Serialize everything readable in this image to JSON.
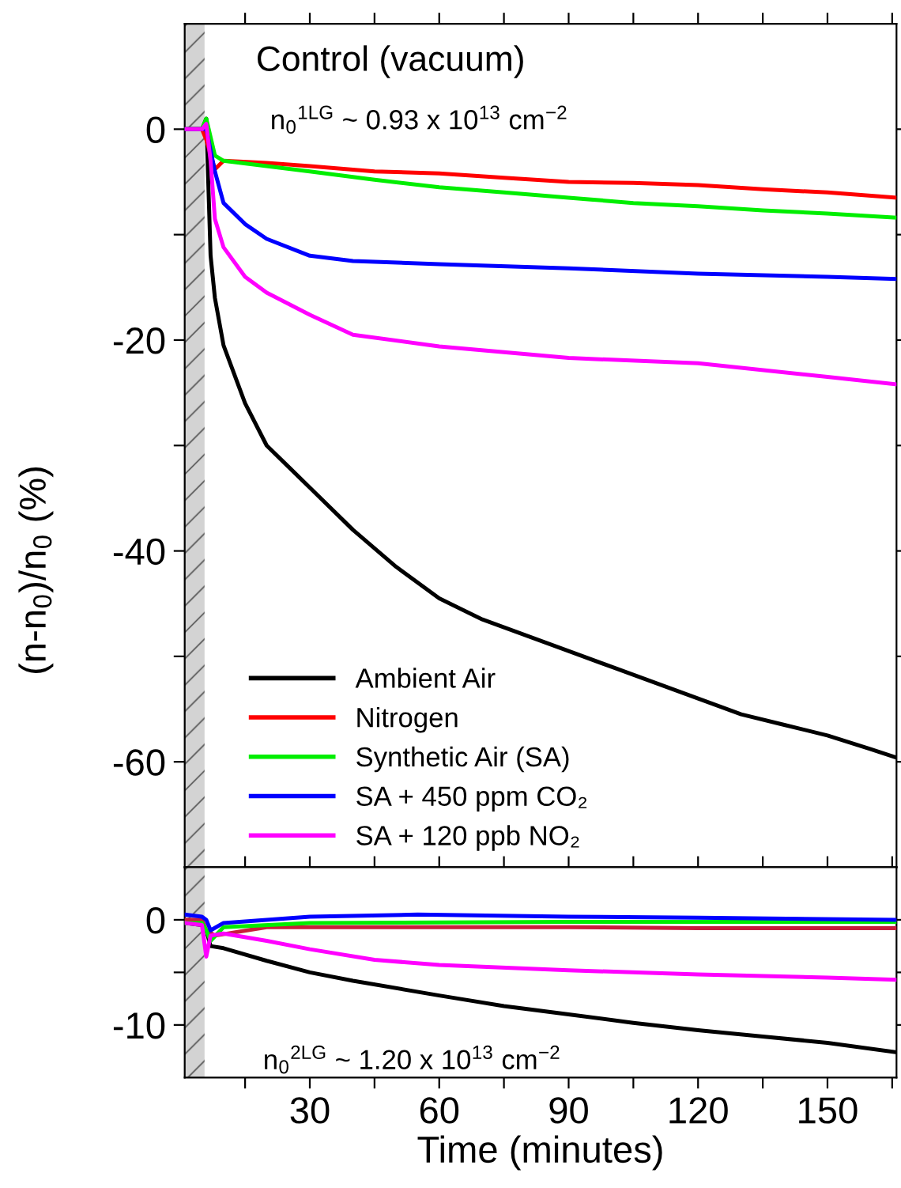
{
  "chart_data": [
    {
      "type": "line",
      "ylabel": "(n-n$_{0}$)/n$_{0}$ (%)",
      "xlim": [
        1,
        166
      ],
      "ylim": [
        -70,
        10
      ],
      "xticks": [
        {
          "value": 15,
          "label": null
        },
        {
          "value": 30,
          "label": null
        },
        {
          "value": 45,
          "label": null
        },
        {
          "value": 60,
          "label": null
        },
        {
          "value": 75,
          "label": null
        },
        {
          "value": 90,
          "label": null
        },
        {
          "value": 105,
          "label": null
        },
        {
          "value": 120,
          "label": null
        },
        {
          "value": 135,
          "label": null
        },
        {
          "value": 150,
          "label": null
        },
        {
          "value": 165,
          "label": null
        }
      ],
      "yticks": [
        0,
        {
          "value": -10,
          "label": null
        },
        -20,
        {
          "value": -30,
          "label": null
        },
        -40,
        {
          "value": -50,
          "label": null
        },
        -60
      ],
      "tick_labels": "y",
      "legend": "bottom left",
      "grid": false,
      "annotations": [
        "Control (vacuum)",
        "n$_{0}$$^{1LG}$ ~ 0.93 x 10$^{13}$ cm$^{−2}$"
      ],
      "bands": [
        {
          "axis": "x",
          "from": 1,
          "to": 5.6,
          "color": "#d3d3d3"
        }
      ],
      "series": [
        {
          "name": "Ambient Air",
          "color": "#000000",
          "x": [
            1,
            5,
            6,
            7,
            8,
            10,
            15,
            20,
            25,
            30,
            40,
            50,
            60,
            70,
            80,
            90,
            100,
            110,
            120,
            130,
            140,
            150,
            160,
            166
          ],
          "values": [
            0,
            0,
            1,
            -12,
            -16,
            -20.5,
            -26,
            -30,
            -32,
            -34,
            -38,
            -41.5,
            -44.5,
            -46.5,
            -48,
            -49.5,
            -51,
            -52.5,
            -54,
            -55.5,
            -56.5,
            -57.5,
            -58.8,
            -59.6
          ]
        },
        {
          "name": "Nitrogen",
          "color": "#ff0000",
          "x": [
            1,
            5,
            6,
            8,
            10,
            20,
            30,
            45,
            60,
            75,
            90,
            105,
            120,
            135,
            150,
            166
          ],
          "values": [
            0,
            0,
            -1,
            -3.8,
            -3,
            -3.2,
            -3.5,
            -4,
            -4.2,
            -4.6,
            -5,
            -5.1,
            -5.3,
            -5.7,
            -6,
            -6.5
          ]
        },
        {
          "name": "Synthetic Air (SA)",
          "color": "#00ee00",
          "x": [
            1,
            5,
            6,
            8,
            10,
            20,
            30,
            45,
            60,
            75,
            90,
            105,
            120,
            135,
            150,
            166
          ],
          "values": [
            0,
            0,
            1,
            -2.5,
            -3,
            -3.5,
            -4,
            -4.8,
            -5.5,
            -6,
            -6.5,
            -7,
            -7.3,
            -7.7,
            -8,
            -8.4
          ]
        },
        {
          "name": "SA + 450 ppm CO₂",
          "color": "#0000ff",
          "x": [
            1,
            5,
            6,
            8,
            10,
            15,
            20,
            30,
            40,
            60,
            90,
            120,
            150,
            166
          ],
          "values": [
            0,
            0,
            0,
            -4,
            -7,
            -9,
            -10.4,
            -12,
            -12.5,
            -12.8,
            -13.2,
            -13.7,
            -14,
            -14.2
          ]
        },
        {
          "name": "SA + 120 ppb NO₂",
          "color": "#ff00ff",
          "x": [
            1,
            5,
            6,
            7,
            8,
            10,
            15,
            20,
            30,
            40,
            60,
            90,
            120,
            150,
            166
          ],
          "values": [
            0,
            0,
            0.5,
            -3,
            -8.5,
            -11.2,
            -14,
            -15.5,
            -17.6,
            -19.5,
            -20.6,
            -21.7,
            -22.2,
            -23.5,
            -24.2
          ]
        }
      ]
    },
    {
      "type": "line",
      "xlabel": "Time (minutes)",
      "xlim": [
        1,
        166
      ],
      "ylim": [
        -15,
        5
      ],
      "xticks": [
        {
          "value": 15,
          "label": null
        },
        30,
        {
          "value": 45,
          "label": null
        },
        60,
        {
          "value": 75,
          "label": null
        },
        90,
        {
          "value": 105,
          "label": null
        },
        120,
        {
          "value": 135,
          "label": null
        },
        150,
        {
          "value": 165,
          "label": null
        }
      ],
      "yticks": [
        0,
        {
          "value": -5,
          "label": null
        },
        -10
      ],
      "grid": false,
      "annotations": [
        "n$_{0}$$^{2LG}$ ~ 1.20 x 10$^{13}$ cm$^{−2}$"
      ],
      "bands": [
        {
          "axis": "x",
          "from": 1,
          "to": 5.6,
          "color": "#d3d3d3"
        }
      ],
      "series": [
        {
          "color": "#000000",
          "x": [
            1,
            5,
            6,
            7,
            10,
            20,
            30,
            40,
            60,
            75,
            90,
            105,
            120,
            135,
            150,
            166
          ],
          "values": [
            -0.3,
            -0.5,
            -1,
            -2.5,
            -2.7,
            -3.9,
            -5,
            -5.8,
            -7.2,
            -8.2,
            -9,
            -9.8,
            -10.5,
            -11.1,
            -11.7,
            -12.6
          ]
        },
        {
          "color": "#c81e3c",
          "x": [
            1,
            5,
            6,
            8,
            20,
            60,
            90,
            120,
            166
          ],
          "values": [
            0,
            0,
            -1,
            -1.5,
            -0.7,
            -0.7,
            -0.7,
            -0.8,
            -0.8
          ]
        },
        {
          "color": "#00ee00",
          "x": [
            1,
            5,
            6,
            7,
            10,
            30,
            90,
            166
          ],
          "values": [
            -0.3,
            -0.3,
            -1,
            -2,
            -0.7,
            -0.3,
            -0.2,
            -0.2
          ]
        },
        {
          "color": "#0000ff",
          "x": [
            1,
            5,
            6,
            7,
            10,
            30,
            55,
            90,
            120,
            166
          ],
          "values": [
            0.5,
            0.3,
            0,
            -1,
            -0.3,
            0.3,
            0.5,
            0.3,
            0.2,
            0
          ]
        },
        {
          "color": "#ff00ff",
          "x": [
            1,
            5,
            6,
            7,
            10,
            20,
            30,
            45,
            60,
            90,
            120,
            150,
            166
          ],
          "values": [
            -0.3,
            -0.5,
            -3.5,
            -1.5,
            -1.3,
            -2,
            -2.8,
            -3.8,
            -4.3,
            -4.8,
            -5.2,
            -5.5,
            -5.7
          ]
        }
      ]
    }
  ]
}
